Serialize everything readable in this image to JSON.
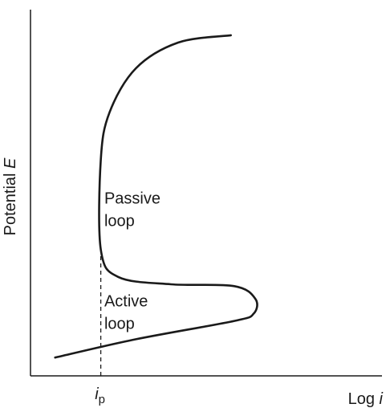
{
  "chart_data": {
    "type": "line",
    "title": "",
    "xlabel": {
      "prefix": "Log ",
      "var": "i"
    },
    "ylabel": {
      "prefix": "Potential ",
      "var": "E"
    },
    "x_ticks": [
      {
        "var": "i",
        "sub": "p",
        "x": 0.2
      }
    ],
    "grid": false,
    "legend": "none",
    "xlim": [
      0,
      1
    ],
    "ylim": [
      0,
      1
    ],
    "series": [
      {
        "points": [
          [
            0.07,
            0.05
          ],
          [
            0.3,
            0.1
          ],
          [
            0.58,
            0.15
          ],
          [
            0.635,
            0.17
          ],
          [
            0.64,
            0.21
          ],
          [
            0.58,
            0.245
          ],
          [
            0.4,
            0.25
          ],
          [
            0.25,
            0.27
          ],
          [
            0.2,
            0.345
          ],
          [
            0.2,
            0.59
          ],
          [
            0.225,
            0.72
          ],
          [
            0.3,
            0.84
          ],
          [
            0.42,
            0.91
          ],
          [
            0.57,
            0.93
          ]
        ],
        "color": "#1a1a1a"
      }
    ],
    "reference_line": {
      "x": 0.2,
      "style": "dashed"
    },
    "annotations": [
      {
        "lines": [
          "Passive",
          "loop"
        ],
        "x": 0.21,
        "y": 0.47
      },
      {
        "lines": [
          "Active",
          "loop"
        ],
        "x": 0.21,
        "y": 0.19
      }
    ],
    "axis_color": "#1a1a1a"
  }
}
